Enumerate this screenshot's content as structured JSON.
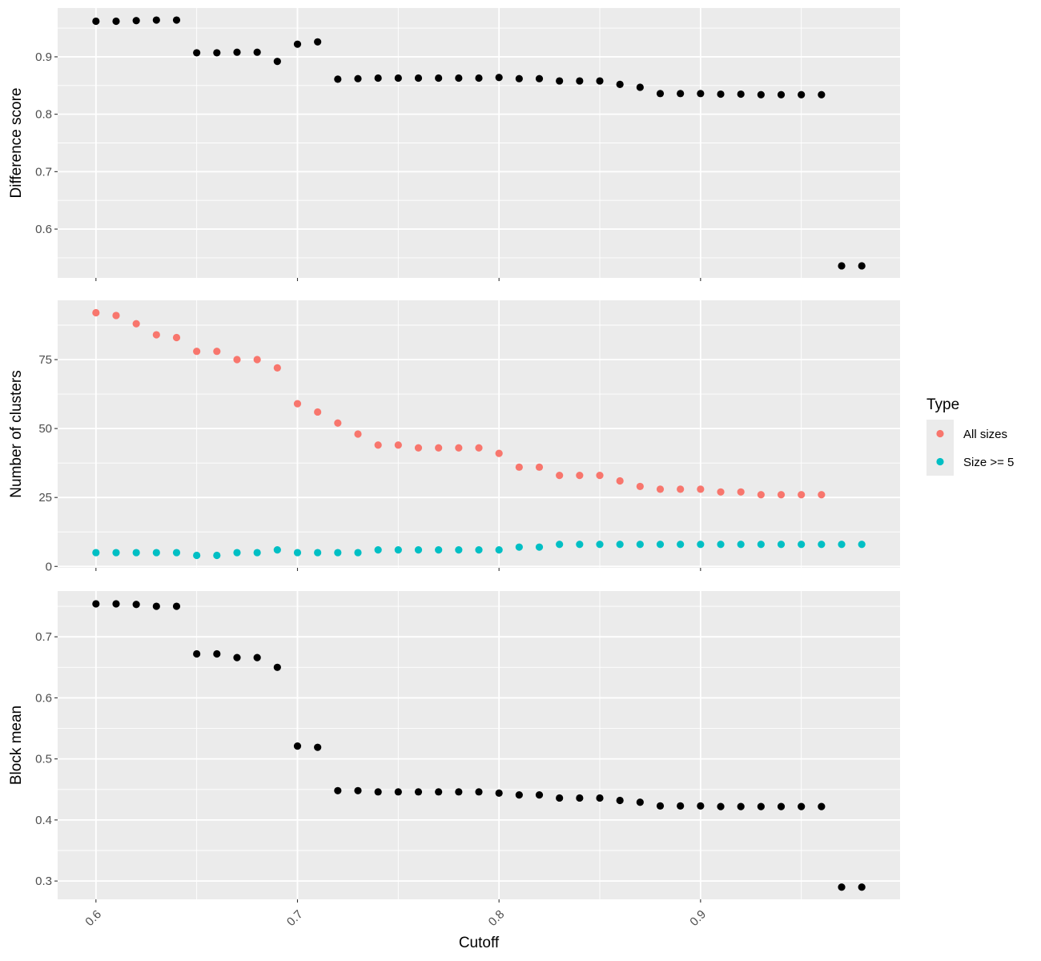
{
  "chart_data": {
    "type": "scatter",
    "xlabel": "Cutoff",
    "x_ticks": [
      0.6,
      0.7,
      0.8,
      0.9
    ],
    "x_tick_labels": [
      "0.6",
      "0.7",
      "0.8",
      "0.9"
    ],
    "xlim": [
      0.581,
      0.999
    ],
    "grid": true,
    "legend": {
      "title": "Type",
      "position": "right",
      "entries": [
        {
          "name": "All sizes",
          "color": "#F8766D"
        },
        {
          "name": "Size >= 5",
          "color": "#00BFC4"
        }
      ]
    },
    "panels": [
      {
        "ylabel": "Difference score",
        "ylim": [
          0.515,
          0.985
        ],
        "y_ticks": [
          0.6,
          0.7,
          0.8,
          0.9
        ],
        "y_tick_labels": [
          "0.6",
          "0.7",
          "0.8",
          "0.9"
        ],
        "series": [
          {
            "color": "#000000",
            "x": [
              0.6,
              0.61,
              0.62,
              0.63,
              0.64,
              0.65,
              0.66,
              0.67,
              0.68,
              0.69,
              0.7,
              0.71,
              0.72,
              0.73,
              0.74,
              0.75,
              0.76,
              0.77,
              0.78,
              0.79,
              0.8,
              0.81,
              0.82,
              0.83,
              0.84,
              0.85,
              0.86,
              0.87,
              0.88,
              0.89,
              0.9,
              0.91,
              0.92,
              0.93,
              0.94,
              0.95,
              0.96,
              0.97,
              0.98
            ],
            "y": [
              0.962,
              0.962,
              0.963,
              0.964,
              0.964,
              0.907,
              0.907,
              0.908,
              0.908,
              0.892,
              0.922,
              0.926,
              0.861,
              0.862,
              0.863,
              0.863,
              0.863,
              0.863,
              0.863,
              0.863,
              0.864,
              0.862,
              0.862,
              0.858,
              0.858,
              0.858,
              0.852,
              0.847,
              0.836,
              0.836,
              0.836,
              0.835,
              0.835,
              0.834,
              0.834,
              0.834,
              0.834,
              0.536,
              0.536
            ]
          }
        ]
      },
      {
        "ylabel": "Number of clusters",
        "ylim": [
          -0.5,
          96.5
        ],
        "y_ticks": [
          0,
          25,
          50,
          75
        ],
        "y_tick_labels": [
          "0",
          "25",
          "50",
          "75"
        ],
        "series": [
          {
            "name": "All sizes",
            "color": "#F8766D",
            "x": [
              0.6,
              0.61,
              0.62,
              0.63,
              0.64,
              0.65,
              0.66,
              0.67,
              0.68,
              0.69,
              0.7,
              0.71,
              0.72,
              0.73,
              0.74,
              0.75,
              0.76,
              0.77,
              0.78,
              0.79,
              0.8,
              0.81,
              0.82,
              0.83,
              0.84,
              0.85,
              0.86,
              0.87,
              0.88,
              0.89,
              0.9,
              0.91,
              0.92,
              0.93,
              0.94,
              0.95,
              0.96
            ],
            "y": [
              92,
              91,
              88,
              84,
              83,
              78,
              78,
              75,
              75,
              72,
              59,
              56,
              52,
              48,
              44,
              44,
              43,
              43,
              43,
              43,
              41,
              36,
              36,
              33,
              33,
              33,
              31,
              29,
              28,
              28,
              28,
              27,
              27,
              26,
              26,
              26,
              26
            ]
          },
          {
            "name": "Size >= 5",
            "color": "#00BFC4",
            "x": [
              0.6,
              0.61,
              0.62,
              0.63,
              0.64,
              0.65,
              0.66,
              0.67,
              0.68,
              0.69,
              0.7,
              0.71,
              0.72,
              0.73,
              0.74,
              0.75,
              0.76,
              0.77,
              0.78,
              0.79,
              0.8,
              0.81,
              0.82,
              0.83,
              0.84,
              0.85,
              0.86,
              0.87,
              0.88,
              0.89,
              0.9,
              0.91,
              0.92,
              0.93,
              0.94,
              0.95,
              0.96,
              0.97,
              0.98
            ],
            "y": [
              5,
              5,
              5,
              5,
              5,
              4,
              4,
              5,
              5,
              6,
              5,
              5,
              5,
              5,
              6,
              6,
              6,
              6,
              6,
              6,
              6,
              7,
              7,
              8,
              8,
              8,
              8,
              8,
              8,
              8,
              8,
              8,
              8,
              8,
              8,
              8,
              8,
              8,
              8
            ]
          }
        ]
      },
      {
        "ylabel": "Block mean",
        "ylim": [
          0.27,
          0.775
        ],
        "y_ticks": [
          0.3,
          0.4,
          0.5,
          0.6,
          0.7
        ],
        "y_tick_labels": [
          "0.3",
          "0.4",
          "0.5",
          "0.6",
          "0.7"
        ],
        "series": [
          {
            "color": "#000000",
            "x": [
              0.6,
              0.61,
              0.62,
              0.63,
              0.64,
              0.65,
              0.66,
              0.67,
              0.68,
              0.69,
              0.7,
              0.71,
              0.72,
              0.73,
              0.74,
              0.75,
              0.76,
              0.77,
              0.78,
              0.79,
              0.8,
              0.81,
              0.82,
              0.83,
              0.84,
              0.85,
              0.86,
              0.87,
              0.88,
              0.89,
              0.9,
              0.91,
              0.92,
              0.93,
              0.94,
              0.95,
              0.96,
              0.97,
              0.98
            ],
            "y": [
              0.754,
              0.754,
              0.753,
              0.75,
              0.75,
              0.672,
              0.672,
              0.666,
              0.666,
              0.65,
              0.521,
              0.519,
              0.448,
              0.448,
              0.446,
              0.446,
              0.446,
              0.446,
              0.446,
              0.446,
              0.444,
              0.441,
              0.441,
              0.436,
              0.436,
              0.436,
              0.432,
              0.429,
              0.423,
              0.423,
              0.423,
              0.422,
              0.422,
              0.422,
              0.422,
              0.422,
              0.422,
              0.29,
              0.29
            ]
          }
        ]
      }
    ]
  }
}
